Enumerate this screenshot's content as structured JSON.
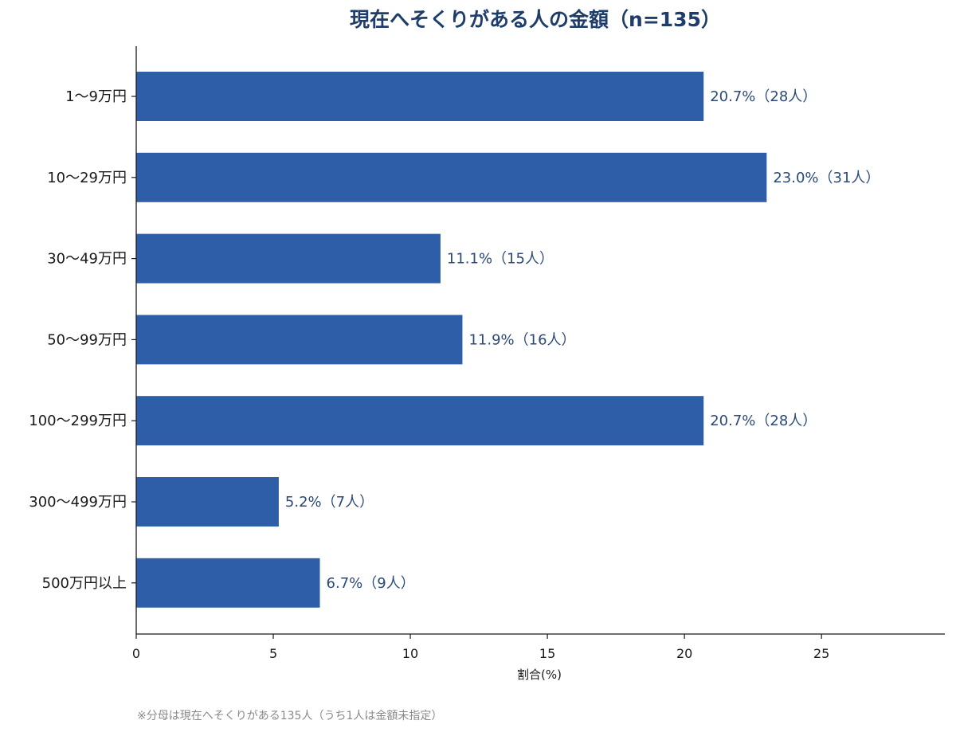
{
  "chart_data": {
    "type": "bar",
    "orientation": "horizontal",
    "title": "現在へそくりがある人の金額（n=135）",
    "xlabel": "割合(%)",
    "ylabel": "",
    "xlim": [
      0,
      29.5
    ],
    "xticks": [
      0,
      5,
      10,
      15,
      20,
      25
    ],
    "categories": [
      "1〜9万円",
      "10〜29万円",
      "30〜49万円",
      "50〜99万円",
      "100〜299万円",
      "300〜499万円",
      "500万円以上"
    ],
    "values": [
      20.7,
      23.0,
      11.1,
      11.9,
      20.7,
      5.2,
      6.7
    ],
    "data_labels": [
      "20.7%（28人）",
      "23.0%（31人）",
      "11.1%（15人）",
      "11.9%（16人）",
      "20.7%（28人）",
      "5.2%（7人）",
      "6.7%（9人）"
    ],
    "grid": false,
    "colors": {
      "bar": "#2e5ea8",
      "title": "#1f3d6b",
      "data_label": "#2b4a78",
      "axis": "#1a1a1a",
      "footnote": "#8a8a8a"
    }
  },
  "footnote": "※分母は現在へそくりがある135人（うち1人は金額未指定）"
}
